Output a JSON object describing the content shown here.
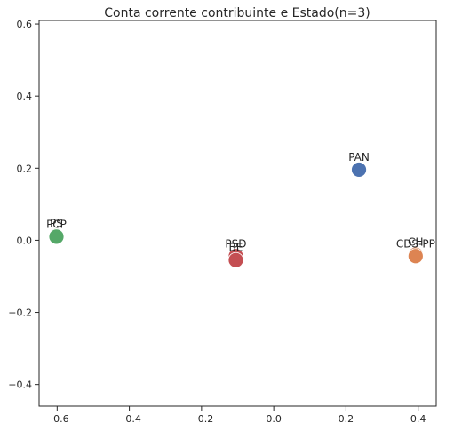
{
  "chart_data": {
    "type": "scatter",
    "title": "Conta corrente contribuinte e Estado(n=3)",
    "xlabel": "",
    "ylabel": "",
    "xlim": [
      -0.65,
      0.45
    ],
    "ylim": [
      -0.46,
      0.61
    ],
    "xticks": [
      -0.6,
      -0.4,
      -0.2,
      0.0,
      0.2,
      0.4
    ],
    "xtick_labels": [
      "−0.6",
      "−0.4",
      "−0.2",
      "0.0",
      "0.2",
      "0.4"
    ],
    "yticks": [
      -0.4,
      -0.2,
      0.0,
      0.2,
      0.4,
      0.6
    ],
    "ytick_labels": [
      "−0.4",
      "−0.2",
      "0.0",
      "0.2",
      "0.4",
      "0.6"
    ],
    "grid": false,
    "points": [
      {
        "label": "PAN",
        "x": 0.236,
        "y": 0.196,
        "color": "#4c72b0"
      },
      {
        "label": "CH",
        "x": 0.393,
        "y": -0.04,
        "color": "#dd8452"
      },
      {
        "label": "CDS-PP",
        "x": 0.393,
        "y": -0.044,
        "color": "#dd8452"
      },
      {
        "label": "PS",
        "x": -0.602,
        "y": 0.012,
        "color": "#55a868"
      },
      {
        "label": "PCP",
        "x": -0.602,
        "y": 0.01,
        "color": "#55a868"
      },
      {
        "label": "PSD",
        "x": -0.105,
        "y": -0.044,
        "color": "#c44e52"
      },
      {
        "label": "BE",
        "x": -0.105,
        "y": -0.055,
        "color": "#c44e52"
      }
    ]
  }
}
